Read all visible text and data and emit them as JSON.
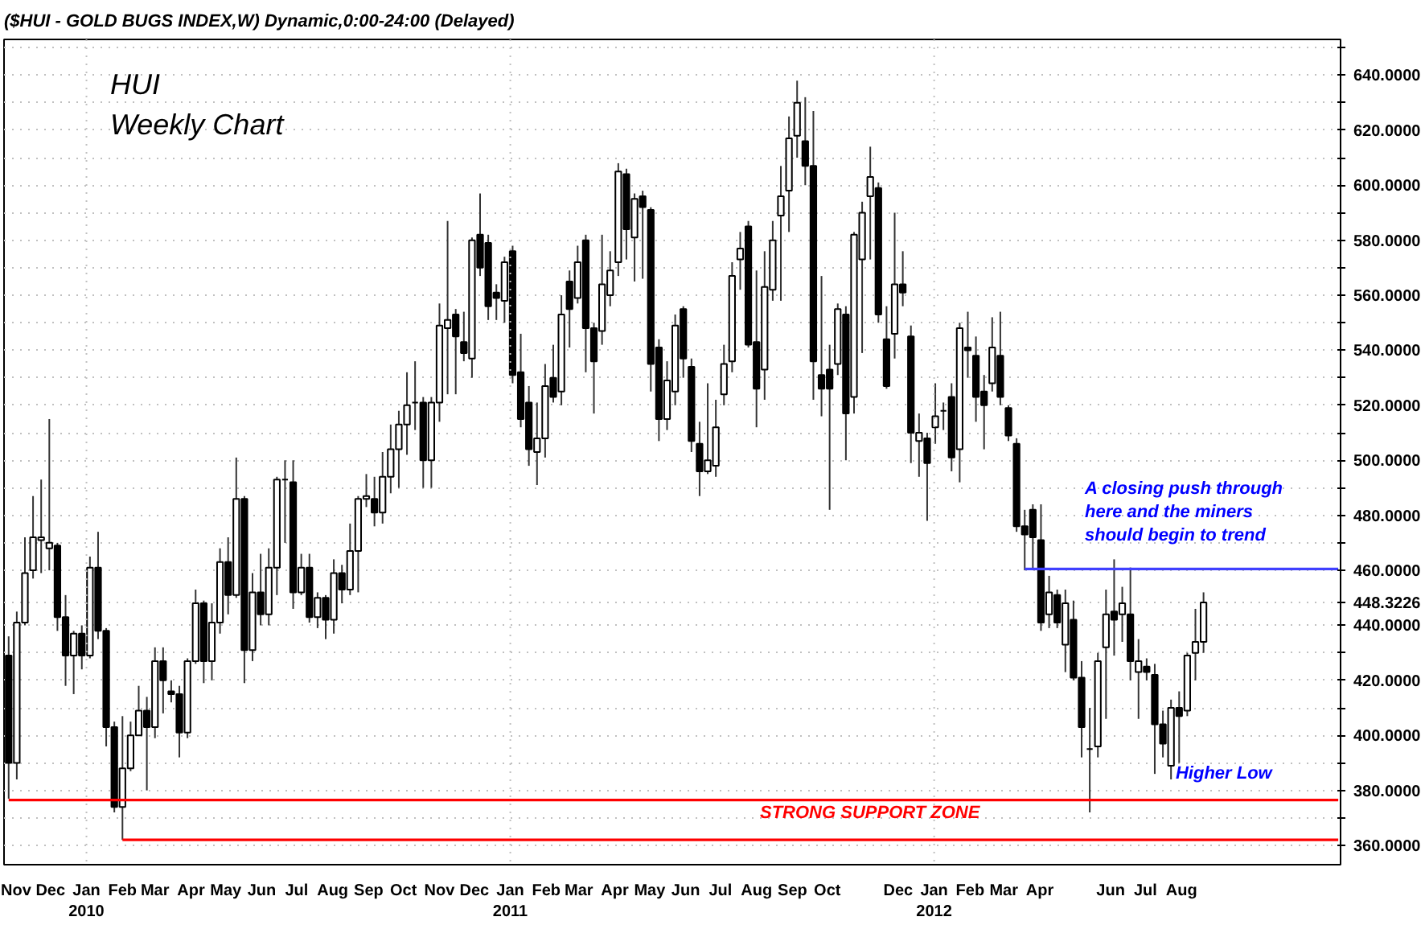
{
  "chart_data": {
    "type": "candlestick",
    "title": "HUI",
    "subtitle": "Weekly Chart",
    "annotations": [
      "($HUI - GOLD BUGS INDEX,W) Dynamic,0:00-24:00 (Delayed)",
      "A closing push through\nhere and the miners\nshould begin to trend",
      {
        "text": "Higher Low",
        "x": "2012-07-27",
        "y": 386
      },
      "STRONG SUPPORT ZONE"
    ],
    "xlim": [
      "2009-10-22",
      "2012-12-16"
    ],
    "ylim": [
      353,
      653
    ],
    "xticks": [
      {
        "value": "2009-11-01",
        "label": "Nov"
      },
      {
        "value": "2009-12-01",
        "label": "Dec"
      },
      {
        "value": "2010-01-01",
        "label": "Jan\n2010"
      },
      {
        "value": "2010-02-01",
        "label": "Feb"
      },
      {
        "value": "2010-03-01",
        "label": "Mar"
      },
      {
        "value": "2010-04-01",
        "label": "Apr"
      },
      {
        "value": "2010-05-01",
        "label": "May"
      },
      {
        "value": "2010-06-01",
        "label": "Jun"
      },
      {
        "value": "2010-07-01",
        "label": "Jul"
      },
      {
        "value": "2010-08-01",
        "label": "Aug"
      },
      {
        "value": "2010-09-01",
        "label": "Sep"
      },
      {
        "value": "2010-10-01",
        "label": "Oct"
      },
      {
        "value": "2010-11-01",
        "label": "Nov"
      },
      {
        "value": "2010-12-01",
        "label": "Dec"
      },
      {
        "value": "2011-01-01",
        "label": "Jan\n2011"
      },
      {
        "value": "2011-02-01",
        "label": "Feb"
      },
      {
        "value": "2011-03-01",
        "label": "Mar"
      },
      {
        "value": "2011-04-01",
        "label": "Apr"
      },
      {
        "value": "2011-05-01",
        "label": "May"
      },
      {
        "value": "2011-06-01",
        "label": "Jun"
      },
      {
        "value": "2011-07-01",
        "label": "Jul"
      },
      {
        "value": "2011-08-01",
        "label": "Aug"
      },
      {
        "value": "2011-09-01",
        "label": "Sep"
      },
      {
        "value": "2011-10-01",
        "label": "Oct"
      },
      {
        "value": "2011-12-01",
        "label": "Dec"
      },
      {
        "value": "2012-01-01",
        "label": "Jan\n2012"
      },
      {
        "value": "2012-02-01",
        "label": "Feb"
      },
      {
        "value": "2012-03-01",
        "label": "Mar"
      },
      {
        "value": "2012-04-01",
        "label": "Apr"
      },
      {
        "value": "2012-06-01",
        "label": "Jun"
      },
      {
        "value": "2012-07-01",
        "label": "Jul"
      },
      {
        "value": "2012-08-01",
        "label": "Aug"
      }
    ],
    "yticks": [
      {
        "value": 360,
        "label": "360.0000"
      },
      {
        "value": 370,
        "label": null
      },
      {
        "value": 380,
        "label": "380.0000"
      },
      {
        "value": 390,
        "label": null
      },
      {
        "value": 400,
        "label": "400.0000"
      },
      {
        "value": 410,
        "label": null
      },
      {
        "value": 420,
        "label": "420.0000"
      },
      {
        "value": 430,
        "label": null
      },
      {
        "value": 440,
        "label": "440.0000"
      },
      {
        "value": 448.3226,
        "label": "448.3226"
      },
      {
        "value": 460,
        "label": "460.0000"
      },
      {
        "value": 470,
        "label": null
      },
      {
        "value": 480,
        "label": "480.0000"
      },
      {
        "value": 490,
        "label": null
      },
      {
        "value": 500,
        "label": "500.0000"
      },
      {
        "value": 510,
        "label": null
      },
      {
        "value": 520,
        "label": "520.0000"
      },
      {
        "value": 530,
        "label": null
      },
      {
        "value": 540,
        "label": "540.0000"
      },
      {
        "value": 550,
        "label": null
      },
      {
        "value": 560,
        "label": "560.0000"
      },
      {
        "value": 570,
        "label": null
      },
      {
        "value": 580,
        "label": "580.0000"
      },
      {
        "value": 590,
        "label": null
      },
      {
        "value": 600,
        "label": "600.0000"
      },
      {
        "value": 610,
        "label": null
      },
      {
        "value": 620,
        "label": "620.0000"
      },
      {
        "value": 630,
        "label": null
      },
      {
        "value": 640,
        "label": "640.0000"
      },
      {
        "value": 650,
        "label": null
      }
    ],
    "grid": "y",
    "ref_lines": [
      {
        "axis": "x",
        "value": "2010-01-01",
        "color": "#c0c0c0",
        "line_style": "dotted"
      },
      {
        "axis": "x",
        "value": "2011-01-01",
        "color": "#c0c0c0",
        "line_style": "dotted"
      },
      {
        "axis": "x",
        "value": "2012-01-01",
        "color": "#c0c0c0",
        "line_style": "dotted"
      }
    ],
    "series": [
      {
        "x": [
          "2009-10-26",
          "2009-11-02",
          "2009-11-09",
          "2009-11-16",
          "2009-11-23",
          "2009-11-30",
          "2009-12-07",
          "2009-12-14",
          "2009-12-21",
          "2009-12-28",
          "2010-01-04",
          "2010-01-11",
          "2010-01-18",
          "2010-01-25",
          "2010-02-01",
          "2010-02-08",
          "2010-02-15",
          "2010-02-22",
          "2010-03-01",
          "2010-03-08",
          "2010-03-15",
          "2010-03-22",
          "2010-03-29",
          "2010-04-05",
          "2010-04-12",
          "2010-04-19",
          "2010-04-26",
          "2010-05-03",
          "2010-05-10",
          "2010-05-17",
          "2010-05-24",
          "2010-05-31",
          "2010-06-07",
          "2010-06-14",
          "2010-06-21",
          "2010-06-28",
          "2010-07-05",
          "2010-07-12",
          "2010-07-19",
          "2010-07-26",
          "2010-08-02",
          "2010-08-09",
          "2010-08-16",
          "2010-08-23",
          "2010-08-30",
          "2010-09-06",
          "2010-09-13",
          "2010-09-20",
          "2010-09-27",
          "2010-10-04",
          "2010-10-11",
          "2010-10-18",
          "2010-10-25",
          "2010-11-01",
          "2010-11-08",
          "2010-11-15",
          "2010-11-22",
          "2010-11-29",
          "2010-12-06",
          "2010-12-13",
          "2010-12-20",
          "2010-12-27",
          "2011-01-03",
          "2011-01-10",
          "2011-01-17",
          "2011-01-24",
          "2011-01-31",
          "2011-02-07",
          "2011-02-14",
          "2011-02-21",
          "2011-02-28",
          "2011-03-07",
          "2011-03-14",
          "2011-03-21",
          "2011-03-28",
          "2011-04-04",
          "2011-04-11",
          "2011-04-18",
          "2011-04-25",
          "2011-05-02",
          "2011-05-09",
          "2011-05-16",
          "2011-05-23",
          "2011-05-30",
          "2011-06-06",
          "2011-06-13",
          "2011-06-20",
          "2011-06-27",
          "2011-07-04",
          "2011-07-11",
          "2011-07-18",
          "2011-07-25",
          "2011-08-01",
          "2011-08-08",
          "2011-08-15",
          "2011-08-22",
          "2011-08-29",
          "2011-09-05",
          "2011-09-12",
          "2011-09-19",
          "2011-09-26",
          "2011-10-03",
          "2011-10-10",
          "2011-10-17",
          "2011-10-24",
          "2011-10-31",
          "2011-11-07",
          "2011-11-14",
          "2011-11-21",
          "2011-11-28",
          "2011-12-05",
          "2011-12-12",
          "2011-12-19",
          "2011-12-26",
          "2012-01-02",
          "2012-01-09",
          "2012-01-16",
          "2012-01-23",
          "2012-01-30",
          "2012-02-06",
          "2012-02-13",
          "2012-02-20",
          "2012-02-27",
          "2012-03-05",
          "2012-03-12",
          "2012-03-19",
          "2012-03-26",
          "2012-04-02",
          "2012-04-09",
          "2012-04-16",
          "2012-04-23",
          "2012-04-30",
          "2012-05-07",
          "2012-05-14",
          "2012-05-21",
          "2012-05-28",
          "2012-06-04",
          "2012-06-11",
          "2012-06-18",
          "2012-06-25",
          "2012-07-02",
          "2012-07-09",
          "2012-07-16",
          "2012-07-23",
          "2012-07-30",
          "2012-08-06",
          "2012-08-13",
          "2012-08-20"
        ],
        "ohlc": [
          [
            429,
            436,
            377,
            390
          ],
          [
            390,
            445,
            384,
            441
          ],
          [
            441,
            472,
            440,
            459
          ],
          [
            460,
            487,
            457,
            472
          ],
          [
            471,
            493,
            459,
            472
          ],
          [
            468,
            515,
            460,
            470
          ],
          [
            469,
            470,
            438,
            443
          ],
          [
            443,
            451,
            418,
            429
          ],
          [
            429,
            438,
            415,
            437
          ],
          [
            437,
            440,
            424,
            429
          ],
          [
            429,
            465,
            428,
            461
          ],
          [
            461,
            474,
            435,
            438
          ],
          [
            438,
            439,
            396,
            403
          ],
          [
            403,
            405,
            372,
            374
          ],
          [
            374,
            407,
            362,
            388
          ],
          [
            388,
            405,
            387,
            400
          ],
          [
            400,
            418,
            400,
            409
          ],
          [
            409,
            414,
            380,
            403
          ],
          [
            403,
            432,
            399,
            427
          ],
          [
            427,
            432,
            408,
            420
          ],
          [
            416,
            420,
            412,
            415
          ],
          [
            415,
            418,
            392,
            401
          ],
          [
            401,
            428,
            399,
            427
          ],
          [
            427,
            453,
            426,
            448
          ],
          [
            448,
            449,
            419,
            427
          ],
          [
            427,
            448,
            420,
            441
          ],
          [
            441,
            468,
            437,
            463
          ],
          [
            463,
            472,
            444,
            451
          ],
          [
            451,
            501,
            450,
            486
          ],
          [
            486,
            487,
            419,
            431
          ],
          [
            431,
            459,
            427,
            452
          ],
          [
            452,
            466,
            440,
            444
          ],
          [
            444,
            468,
            440,
            461
          ],
          [
            461,
            494,
            451,
            493
          ],
          [
            493,
            500,
            470,
            493
          ],
          [
            492,
            500,
            446,
            452
          ],
          [
            452,
            466,
            451,
            461
          ],
          [
            461,
            466,
            441,
            443
          ],
          [
            443,
            452,
            439,
            450
          ],
          [
            450,
            451,
            435,
            442
          ],
          [
            442,
            464,
            437,
            459
          ],
          [
            459,
            462,
            448,
            453
          ],
          [
            453,
            477,
            451,
            467
          ],
          [
            467,
            487,
            452,
            486
          ],
          [
            486,
            495,
            483,
            487
          ],
          [
            486,
            494,
            476,
            481
          ],
          [
            481,
            503,
            477,
            494
          ],
          [
            494,
            513,
            488,
            504
          ],
          [
            504,
            518,
            490,
            513
          ],
          [
            513,
            532,
            502,
            520
          ],
          [
            521,
            536,
            511,
            521
          ],
          [
            521,
            523,
            490,
            500
          ],
          [
            500,
            523,
            490,
            521
          ],
          [
            521,
            557,
            514,
            549
          ],
          [
            548,
            587,
            524,
            551
          ],
          [
            553,
            555,
            524,
            545
          ],
          [
            543,
            554,
            536,
            539
          ],
          [
            537,
            581,
            530,
            580
          ],
          [
            582,
            597,
            567,
            570
          ],
          [
            579,
            582,
            551,
            556
          ],
          [
            561,
            564,
            551,
            559
          ],
          [
            558,
            574,
            550,
            572
          ],
          [
            576,
            578,
            528,
            531
          ],
          [
            532,
            546,
            512,
            515
          ],
          [
            521,
            527,
            498,
            504
          ],
          [
            503,
            521,
            491,
            508
          ],
          [
            508,
            535,
            501,
            527
          ],
          [
            530,
            542,
            521,
            523
          ],
          [
            525,
            560,
            520,
            553
          ],
          [
            565,
            569,
            541,
            555
          ],
          [
            559,
            578,
            557,
            572
          ],
          [
            580,
            582,
            532,
            548
          ],
          [
            548,
            550,
            517,
            536
          ],
          [
            547,
            582,
            542,
            564
          ],
          [
            560,
            576,
            556,
            569
          ],
          [
            572,
            608,
            567,
            605
          ],
          [
            604,
            606,
            573,
            584
          ],
          [
            581,
            597,
            565,
            595
          ],
          [
            596,
            598,
            566,
            592
          ],
          [
            591,
            592,
            525,
            535
          ],
          [
            541,
            544,
            507,
            515
          ],
          [
            515,
            536,
            511,
            529
          ],
          [
            525,
            553,
            520,
            549
          ],
          [
            555,
            556,
            530,
            537
          ],
          [
            534,
            537,
            503,
            507
          ],
          [
            506,
            514,
            487,
            496
          ],
          [
            496,
            528,
            495,
            500
          ],
          [
            498,
            522,
            494,
            512
          ],
          [
            524,
            542,
            520,
            535
          ],
          [
            536,
            572,
            532,
            567
          ],
          [
            573,
            583,
            562,
            577
          ],
          [
            585,
            587,
            541,
            542
          ],
          [
            543,
            569,
            512,
            526
          ],
          [
            533,
            576,
            522,
            563
          ],
          [
            562,
            587,
            558,
            580
          ],
          [
            589,
            607,
            558,
            596
          ],
          [
            598,
            625,
            583,
            617
          ],
          [
            618,
            638,
            610,
            630
          ],
          [
            616,
            632,
            600,
            607
          ],
          [
            607,
            627,
            522,
            536
          ],
          [
            531,
            567,
            516,
            526
          ],
          [
            533,
            542,
            482,
            526
          ],
          [
            535,
            557,
            531,
            555
          ],
          [
            553,
            556,
            500,
            517
          ],
          [
            523,
            583,
            517,
            582
          ],
          [
            573,
            594,
            539,
            590
          ],
          [
            596,
            614,
            573,
            603
          ],
          [
            599,
            601,
            550,
            553
          ],
          [
            544,
            556,
            526,
            527
          ],
          [
            546,
            590,
            537,
            564
          ],
          [
            564,
            576,
            556,
            561
          ],
          [
            545,
            549,
            499,
            510
          ],
          [
            507,
            517,
            494,
            510
          ],
          [
            508,
            510,
            478,
            499
          ],
          [
            512,
            528,
            506,
            516
          ],
          [
            518,
            521,
            511,
            518
          ],
          [
            523,
            528,
            496,
            501
          ],
          [
            504,
            550,
            492,
            548
          ],
          [
            541,
            554,
            530,
            540
          ],
          [
            538,
            545,
            514,
            523
          ],
          [
            525,
            531,
            504,
            520
          ],
          [
            528,
            552,
            525,
            541
          ],
          [
            538,
            554,
            520,
            523
          ],
          [
            519,
            520,
            507,
            509
          ],
          [
            506,
            508,
            474,
            476
          ],
          [
            476,
            482,
            460,
            473
          ],
          [
            482,
            484,
            460,
            472
          ],
          [
            471,
            484,
            438,
            441
          ],
          [
            444,
            458,
            439,
            452
          ],
          [
            451,
            453,
            439,
            441
          ],
          [
            433,
            453,
            423,
            448
          ],
          [
            442,
            449,
            420,
            421
          ],
          [
            421,
            427,
            392,
            403
          ],
          [
            395,
            410,
            372,
            395
          ],
          [
            396,
            430,
            392,
            427
          ],
          [
            432,
            453,
            406,
            444
          ],
          [
            445,
            464,
            429,
            442
          ],
          [
            444,
            454,
            434,
            448
          ],
          [
            444,
            461,
            420,
            427
          ],
          [
            423,
            435,
            406,
            427
          ],
          [
            425,
            428,
            420,
            423
          ],
          [
            422,
            426,
            386,
            404
          ],
          [
            404,
            409,
            392,
            397
          ],
          [
            389,
            413,
            384,
            410
          ],
          [
            410,
            416,
            390,
            407
          ],
          [
            409,
            430,
            407,
            429
          ],
          [
            430,
            446,
            420,
            434
          ],
          [
            434,
            452,
            430,
            448.3226
          ]
        ]
      },
      {
        "type": "line",
        "color": "#ff0000",
        "x": [
          "2009-10-26",
          "2012-12-14"
        ],
        "values": [
          376.5,
          376.5
        ]
      },
      {
        "type": "line",
        "color": "#ff0000",
        "x": [
          "2010-02-01",
          "2012-12-14"
        ],
        "values": [
          362,
          362
        ]
      },
      {
        "type": "line",
        "color": "#4040ff",
        "x": [
          "2012-03-19",
          "2012-12-14"
        ],
        "values": [
          460.5,
          460.5
        ]
      }
    ]
  }
}
